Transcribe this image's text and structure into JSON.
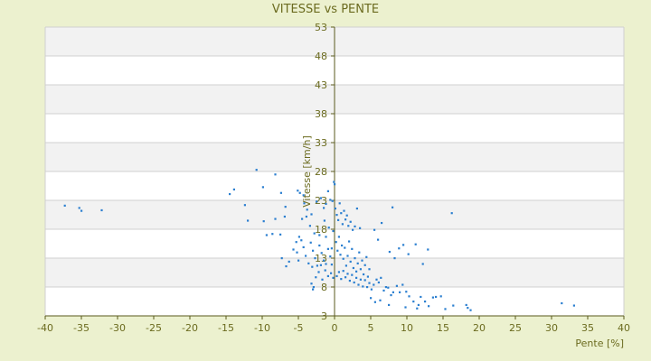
{
  "chart_data": {
    "type": "scatter",
    "title": "VITESSE vs PENTE",
    "xlabel": "Pente [%]",
    "ylabel": "Vitesse [km/h]",
    "xlim": [
      -40,
      40
    ],
    "ylim": [
      3,
      53
    ],
    "x_ticks": [
      -40,
      -35,
      -30,
      -25,
      -20,
      -15,
      -10,
      -5,
      0,
      5,
      10,
      15,
      20,
      25,
      30,
      35,
      40
    ],
    "y_ticks": [
      3,
      8,
      13,
      18,
      23,
      28,
      33,
      38,
      43,
      48,
      53
    ],
    "grid": "horizontal, alternating band shading",
    "colors": {
      "background": "#ecf1cf",
      "plot_bg": "#ffffff",
      "band": "#f2f2f2",
      "grid": "#d0d0d0",
      "axis": "#5a5a1e",
      "point": "#2b7fd0",
      "text": "#6b6b1f"
    },
    "series": [
      {
        "points": [
          [
            -37.3,
            22.1
          ],
          [
            -35.3,
            21.7
          ],
          [
            -35.0,
            21.2
          ],
          [
            -32.2,
            21.3
          ],
          [
            -14.5,
            24.1
          ],
          [
            -13.9,
            24.9
          ],
          [
            -12.4,
            22.2
          ],
          [
            -12.0,
            19.5
          ],
          [
            -10.8,
            28.3
          ],
          [
            -9.9,
            25.3
          ],
          [
            -9.8,
            19.4
          ],
          [
            -9.4,
            17.0
          ],
          [
            -8.6,
            17.2
          ],
          [
            -8.2,
            19.8
          ],
          [
            -7.5,
            17.1
          ],
          [
            -6.9,
            20.2
          ],
          [
            -7.3,
            13.0
          ],
          [
            -6.3,
            12.4
          ],
          [
            -5.7,
            14.5
          ],
          [
            -5.3,
            15.8
          ],
          [
            -4.9,
            16.7
          ],
          [
            -4.5,
            19.8
          ],
          [
            -4.3,
            23.9
          ],
          [
            -3.9,
            20.2
          ],
          [
            -3.4,
            18.6
          ],
          [
            -2.8,
            17.3
          ],
          [
            -2.1,
            17.0
          ],
          [
            -1.4,
            19.5
          ],
          [
            -0.8,
            18.3
          ],
          [
            -6.7,
            11.6
          ],
          [
            -6.8,
            21.9
          ],
          [
            -7.4,
            24.3
          ],
          [
            -8.2,
            27.5
          ],
          [
            -5.1,
            24.7
          ],
          [
            -4.8,
            24.3
          ],
          [
            -4.2,
            22.5
          ],
          [
            -3.8,
            21.4
          ],
          [
            -3.2,
            20.6
          ],
          [
            -2.5,
            22.8
          ],
          [
            -1.9,
            23.4
          ],
          [
            -1.5,
            21.7
          ],
          [
            -1.2,
            22.4
          ],
          [
            -0.9,
            24.6
          ],
          [
            -0.6,
            23.1
          ],
          [
            -0.3,
            22.9
          ],
          [
            -0.1,
            26.2
          ],
          [
            0.0,
            25.8
          ],
          [
            -5.2,
            14.0
          ],
          [
            -5.0,
            12.6
          ],
          [
            -4.6,
            16.1
          ],
          [
            -4.3,
            14.9
          ],
          [
            -4.0,
            13.4
          ],
          [
            -3.6,
            12.1
          ],
          [
            -3.3,
            15.7
          ],
          [
            -3.0,
            14.3
          ],
          [
            -2.7,
            13.0
          ],
          [
            -2.4,
            11.7
          ],
          [
            -2.1,
            15.2
          ],
          [
            -1.8,
            13.9
          ],
          [
            -1.5,
            12.6
          ],
          [
            -1.2,
            16.7
          ],
          [
            -0.9,
            14.6
          ],
          [
            -0.6,
            13.3
          ],
          [
            -0.4,
            11.9
          ],
          [
            -0.2,
            17.7
          ],
          [
            -3.1,
            11.5
          ],
          [
            -2.6,
            9.7
          ],
          [
            -2.2,
            10.6
          ],
          [
            -1.7,
            9.3
          ],
          [
            -1.3,
            10.9
          ],
          [
            -0.9,
            9.9
          ],
          [
            -0.5,
            10.4
          ],
          [
            -0.2,
            9.6
          ],
          [
            -3.2,
            8.6
          ],
          [
            -2.9,
            8.0
          ],
          [
            -3.0,
            7.6
          ],
          [
            -1.9,
            11.8
          ],
          [
            -1.2,
            12.0
          ],
          [
            -0.4,
            14.7
          ],
          [
            0.1,
            21.6
          ],
          [
            0.3,
            20.5
          ],
          [
            0.5,
            19.6
          ],
          [
            0.7,
            22.5
          ],
          [
            0.9,
            20.8
          ],
          [
            1.1,
            18.9
          ],
          [
            1.3,
            21.2
          ],
          [
            1.5,
            19.7
          ],
          [
            1.7,
            20.4
          ],
          [
            1.9,
            18.6
          ],
          [
            2.2,
            19.3
          ],
          [
            2.5,
            17.9
          ],
          [
            2.8,
            18.5
          ],
          [
            3.1,
            21.6
          ],
          [
            3.5,
            18.2
          ],
          [
            0.2,
            15.8
          ],
          [
            0.4,
            14.3
          ],
          [
            0.6,
            16.7
          ],
          [
            0.8,
            13.6
          ],
          [
            1.0,
            15.2
          ],
          [
            1.2,
            12.9
          ],
          [
            1.4,
            14.8
          ],
          [
            1.6,
            11.7
          ],
          [
            1.8,
            13.4
          ],
          [
            2.0,
            15.9
          ],
          [
            2.2,
            12.4
          ],
          [
            2.4,
            14.6
          ],
          [
            2.6,
            11.3
          ],
          [
            2.8,
            13.0
          ],
          [
            3.0,
            10.7
          ],
          [
            3.2,
            12.1
          ],
          [
            3.4,
            14.0
          ],
          [
            3.6,
            11.1
          ],
          [
            3.8,
            12.6
          ],
          [
            4.0,
            10.2
          ],
          [
            4.2,
            11.8
          ],
          [
            4.4,
            13.2
          ],
          [
            4.6,
            9.8
          ],
          [
            4.8,
            11.1
          ],
          [
            0.3,
            9.9
          ],
          [
            0.6,
            10.6
          ],
          [
            0.9,
            9.4
          ],
          [
            1.2,
            10.8
          ],
          [
            1.5,
            9.7
          ],
          [
            1.8,
            10.3
          ],
          [
            2.1,
            9.1
          ],
          [
            2.4,
            10.1
          ],
          [
            2.7,
            8.8
          ],
          [
            3.0,
            9.6
          ],
          [
            3.3,
            8.4
          ],
          [
            3.6,
            9.3
          ],
          [
            3.9,
            8.1
          ],
          [
            4.2,
            9.2
          ],
          [
            4.5,
            8.0
          ],
          [
            4.8,
            8.7
          ],
          [
            5.1,
            7.6
          ],
          [
            5.4,
            8.4
          ],
          [
            5.5,
            17.9
          ],
          [
            6.0,
            16.2
          ],
          [
            6.5,
            19.1
          ],
          [
            7.6,
            14.1
          ],
          [
            8.3,
            13.0
          ],
          [
            8.9,
            14.7
          ],
          [
            9.5,
            15.3
          ],
          [
            10.2,
            13.7
          ],
          [
            11.2,
            15.4
          ],
          [
            12.2,
            12.0
          ],
          [
            12.9,
            14.5
          ],
          [
            8.0,
            21.8
          ],
          [
            16.2,
            20.8
          ],
          [
            5.8,
            9.3
          ],
          [
            6.1,
            8.8
          ],
          [
            6.4,
            9.6
          ],
          [
            6.8,
            7.4
          ],
          [
            7.1,
            8.0
          ],
          [
            7.4,
            7.9
          ],
          [
            7.8,
            6.6
          ],
          [
            8.1,
            7.1
          ],
          [
            8.6,
            8.2
          ],
          [
            9.0,
            7.1
          ],
          [
            9.4,
            8.4
          ],
          [
            9.9,
            7.2
          ],
          [
            10.3,
            6.4
          ],
          [
            10.9,
            5.5
          ],
          [
            11.4,
            4.3
          ],
          [
            11.9,
            6.3
          ],
          [
            12.5,
            5.5
          ],
          [
            13.0,
            4.7
          ],
          [
            13.6,
            6.2
          ],
          [
            14.0,
            6.3
          ],
          [
            14.7,
            6.4
          ],
          [
            15.3,
            4.2
          ],
          [
            16.4,
            4.8
          ],
          [
            18.2,
            4.9
          ],
          [
            18.4,
            4.4
          ],
          [
            18.8,
            4.0
          ],
          [
            5.0,
            6.1
          ],
          [
            5.6,
            5.4
          ],
          [
            6.3,
            5.7
          ],
          [
            7.5,
            4.9
          ],
          [
            9.8,
            4.5
          ],
          [
            11.6,
            4.9
          ],
          [
            31.4,
            5.2
          ],
          [
            33.1,
            4.8
          ]
        ]
      }
    ]
  }
}
